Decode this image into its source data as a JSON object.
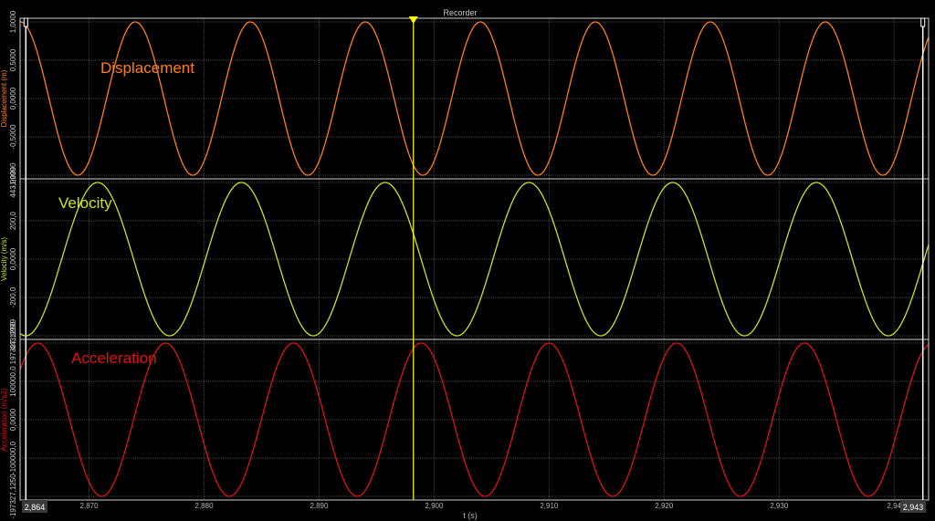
{
  "window": {
    "title": "Recorder"
  },
  "x_axis": {
    "label": "t (s)",
    "start_label": "2,864",
    "end_label": "2,943"
  },
  "cursor": {
    "color": "#ffff00"
  },
  "chart_data": {
    "type": "line",
    "xlim": [
      2.864,
      2.943
    ],
    "x_ticks": [
      2.87,
      2.88,
      2.89,
      2.9,
      2.91,
      2.92,
      2.93,
      2.94
    ],
    "x_tick_labels": [
      "2,870",
      "2,880",
      "2,890",
      "2,900",
      "2,910",
      "2,920",
      "2,930",
      "2,94"
    ],
    "xlabel": "t (s)",
    "grid": true,
    "cursor_x": 2.8982,
    "markers": {
      "left_x": 2.8645,
      "right_x": 2.9425
    },
    "panels": [
      {
        "name": "Displacement",
        "label": "Displacement",
        "ylabel": "Displacement (m)",
        "color": "#ff7f0e",
        "ylim": [
          -1.0,
          1.0
        ],
        "y_tick_labels": [
          "1,0000",
          "0,5000",
          "0,0000",
          "-0,5000",
          "-1,0000"
        ],
        "frequency_hz": 100,
        "amplitude": 1.0,
        "phase_deg": 89.3,
        "samples": [
          {
            "t": 2.864,
            "y": 0.0
          },
          {
            "t": 2.8665,
            "y": -1.0
          },
          {
            "t": 2.869,
            "y": 0.0
          },
          {
            "t": 2.8715,
            "y": 1.0
          },
          {
            "t": 2.874,
            "y": 0.0
          }
        ]
      },
      {
        "name": "Velocity",
        "label": "Velocity",
        "ylabel": "Velocity (m/s)",
        "color": "#c8e60a",
        "ylim": [
          -443.9999,
          443.9999
        ],
        "y_tick_labels": [
          "443,9999",
          "200,0",
          "0,0000",
          "-200,0",
          "-443,9999"
        ],
        "frequency_hz": 80,
        "amplitude": 443.9999,
        "phase_deg": 255.8,
        "samples": [
          {
            "t": 2.8652,
            "y": 443.9999
          },
          {
            "t": 2.8683,
            "y": 0.0
          },
          {
            "t": 2.8714,
            "y": -443.9999
          },
          {
            "t": 2.8746,
            "y": 0.0
          },
          {
            "t": 2.8777,
            "y": 443.9999
          }
        ]
      },
      {
        "name": "Acceleration",
        "label": "Acceleration",
        "ylabel": "Acceleration (m/s2)",
        "color": "#e01010",
        "ylim": [
          -197327.125,
          197327.125
        ],
        "y_tick_labels": [
          "197327,1250",
          "100000,0",
          "0,0000",
          "-100000,0",
          "-197327,1250"
        ],
        "frequency_hz": 90,
        "amplitude": 197327.125,
        "phase_deg": 40.3,
        "samples": [
          {
            "t": 2.864,
            "y": -130000.0
          },
          {
            "t": 2.8671,
            "y": 197327.125
          },
          {
            "t": 2.8726,
            "y": -197327.125
          },
          {
            "t": 2.8782,
            "y": 197327.125
          },
          {
            "t": 2.8837,
            "y": -197327.125
          }
        ]
      }
    ]
  }
}
